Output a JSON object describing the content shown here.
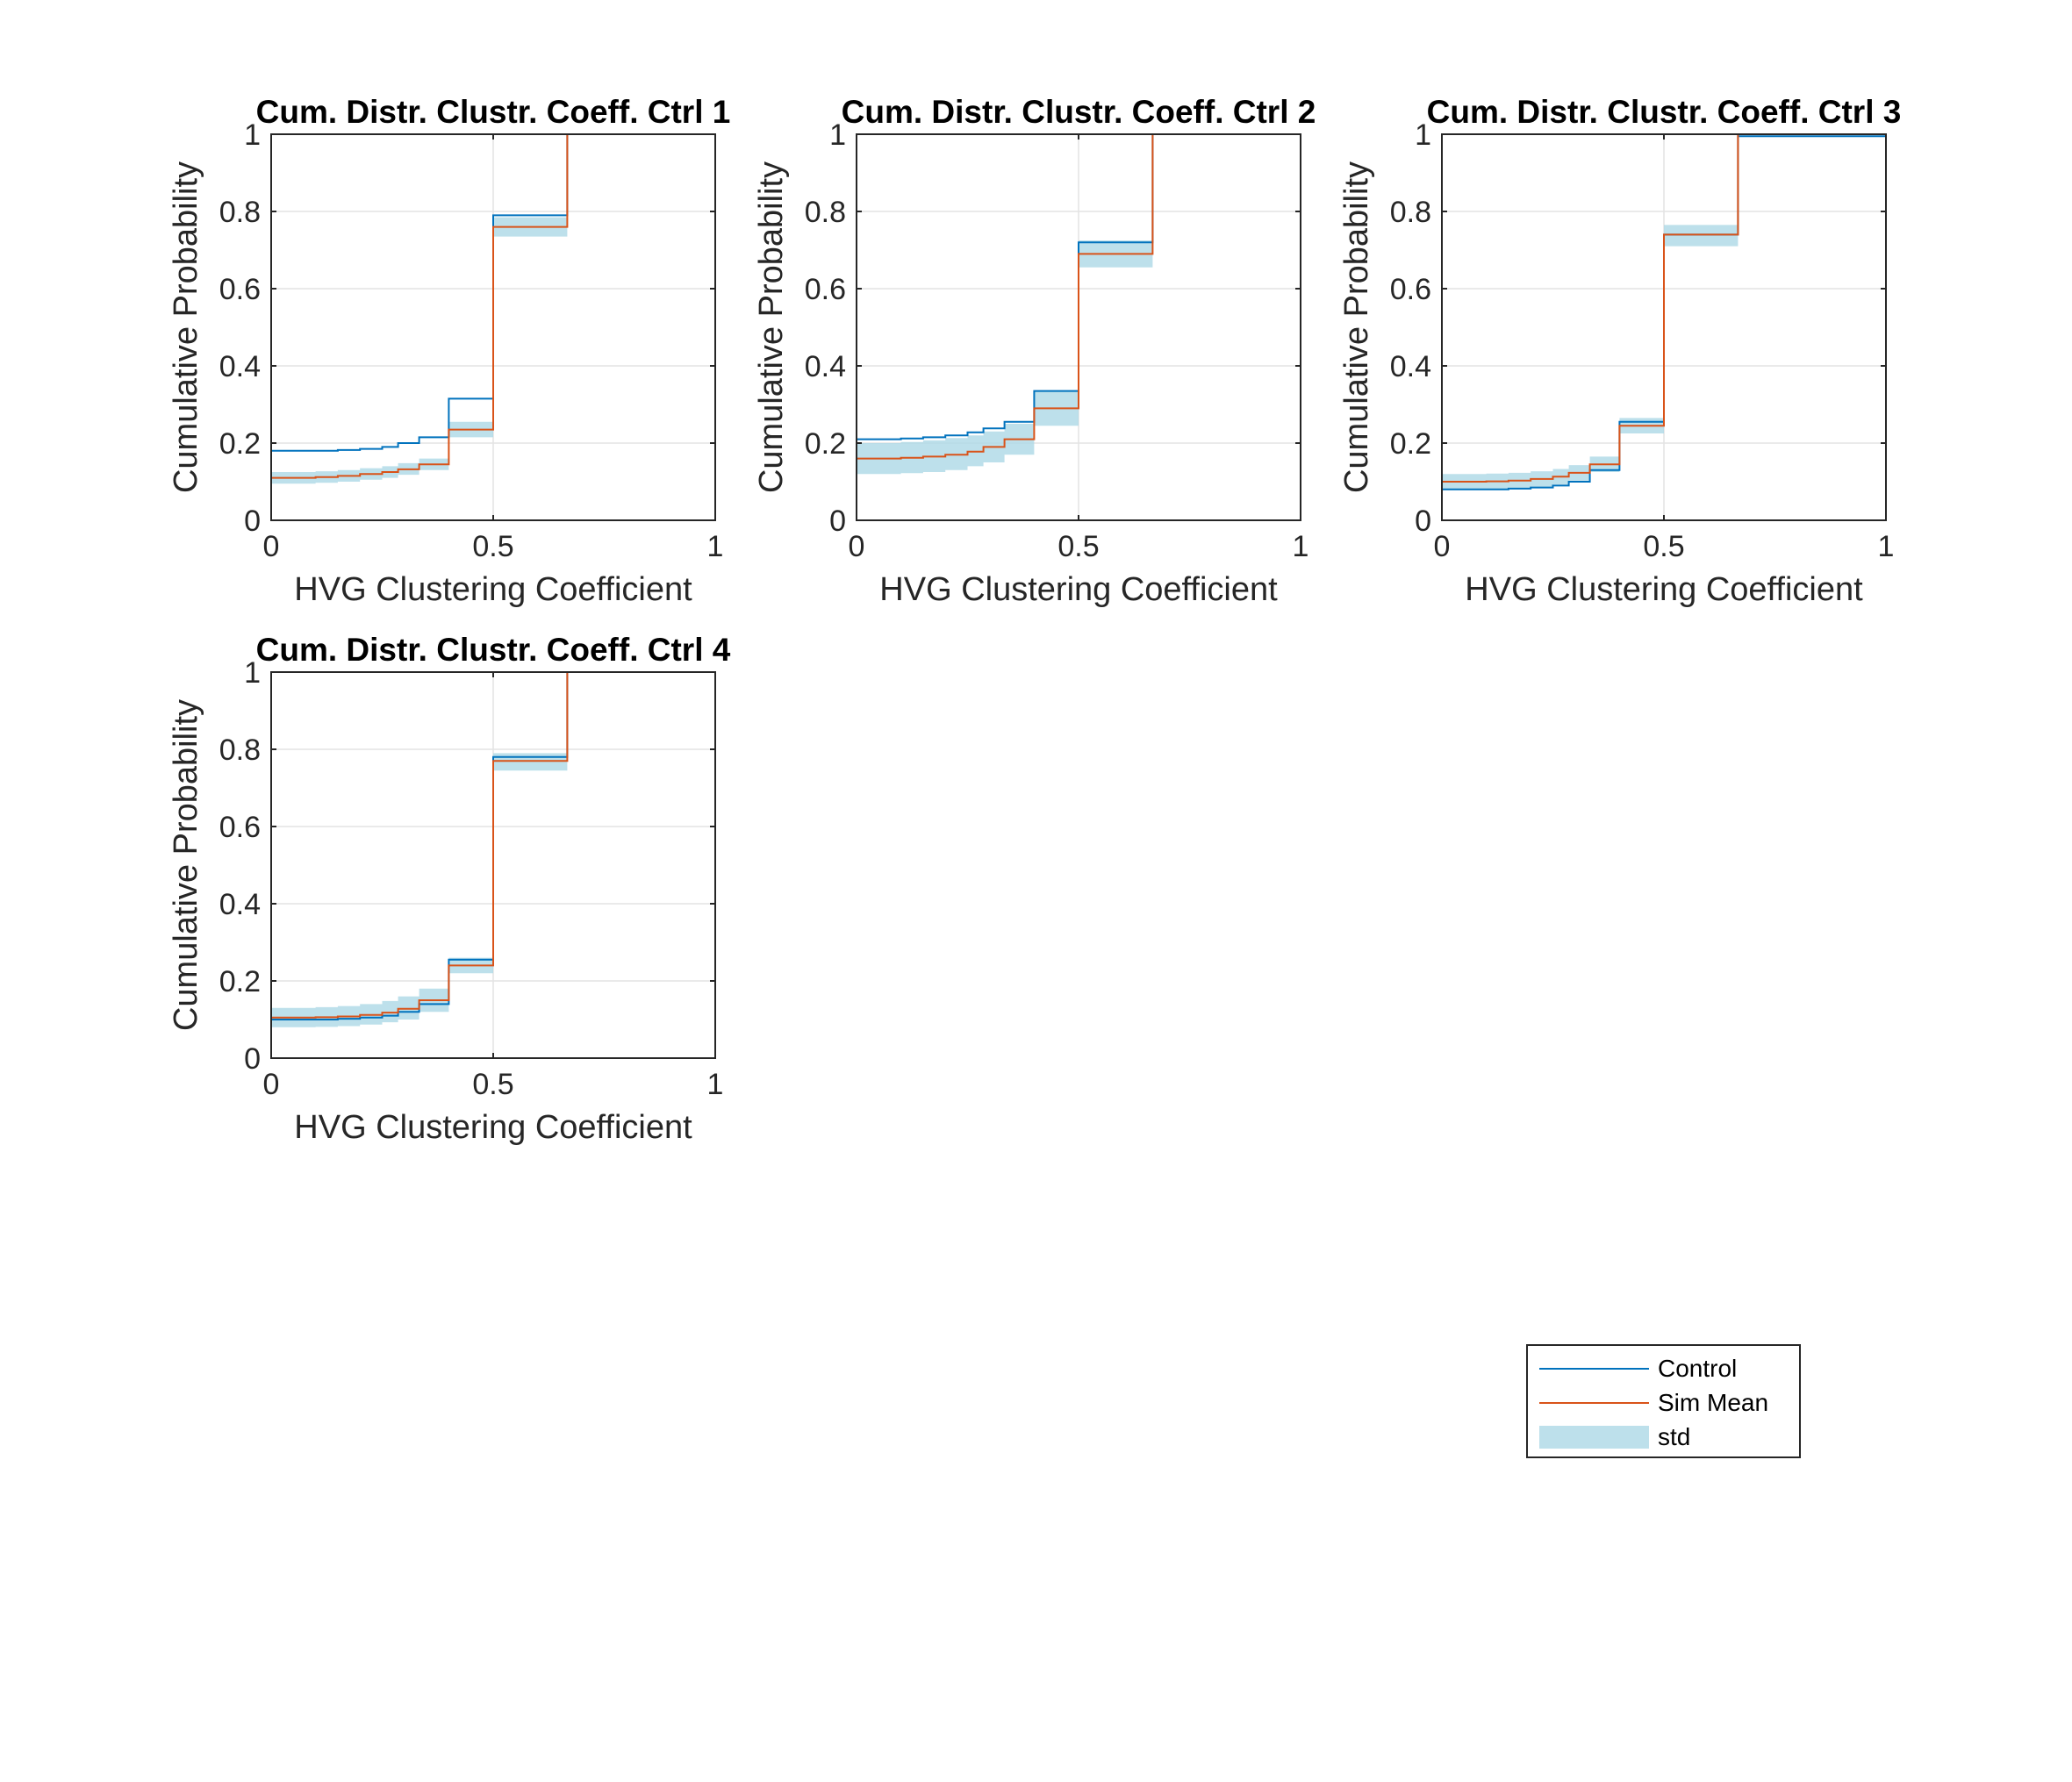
{
  "colors": {
    "control": "#0072BD",
    "sim_mean": "#D95319",
    "std_fill": "#ADD8E6",
    "grid": "#E3E3E3",
    "axis": "#262626"
  },
  "legend": {
    "entries": [
      {
        "label": "Control",
        "kind": "line",
        "color": "#0072BD"
      },
      {
        "label": "Sim Mean",
        "kind": "line",
        "color": "#D95319"
      },
      {
        "label": "std",
        "kind": "patch",
        "color": "#ADD8E6"
      }
    ]
  },
  "chart_data": [
    {
      "type": "line",
      "title": "Cum. Distr. Clustr. Coeff. Ctrl 1",
      "xlabel": "HVG Clustering Coefficient",
      "ylabel": "Cumulative Probability",
      "xlim": [
        0,
        1
      ],
      "ylim": [
        0,
        1
      ],
      "xticks": [
        0,
        0.5,
        1
      ],
      "xtick_labels": [
        "0",
        "0.5",
        "1"
      ],
      "yticks": [
        0,
        0.2,
        0.4,
        0.6,
        0.8,
        1
      ],
      "ytick_labels": [
        "0",
        "0.2",
        "0.4",
        "0.6",
        "0.8",
        "1"
      ],
      "grid": true,
      "series": [
        {
          "name": "Control",
          "step": true,
          "x": [
            0,
            0.1,
            0.15,
            0.2,
            0.25,
            0.2857,
            0.3333,
            0.4,
            0.5,
            0.6667,
            1
          ],
          "y": [
            0.18,
            0.18,
            0.182,
            0.185,
            0.19,
            0.2,
            0.215,
            0.315,
            0.79,
            1,
            1
          ]
        },
        {
          "name": "Sim Mean",
          "step": true,
          "x": [
            0,
            0.1,
            0.15,
            0.2,
            0.25,
            0.2857,
            0.3333,
            0.4,
            0.5,
            0.6667,
            1
          ],
          "y": [
            0.11,
            0.112,
            0.115,
            0.12,
            0.125,
            0.132,
            0.145,
            0.235,
            0.76,
            1,
            1
          ]
        },
        {
          "name": "std",
          "step": true,
          "x": [
            0,
            0.1,
            0.15,
            0.2,
            0.25,
            0.2857,
            0.3333,
            0.4,
            0.5,
            0.6667,
            1
          ],
          "lower": [
            0.095,
            0.097,
            0.1,
            0.105,
            0.11,
            0.118,
            0.13,
            0.215,
            0.735,
            1,
            1
          ],
          "upper": [
            0.125,
            0.127,
            0.13,
            0.135,
            0.14,
            0.148,
            0.16,
            0.255,
            0.785,
            1,
            1
          ]
        }
      ]
    },
    {
      "type": "line",
      "title": "Cum. Distr. Clustr. Coeff. Ctrl 2",
      "xlabel": "HVG Clustering Coefficient",
      "ylabel": "Cumulative Probability",
      "xlim": [
        0,
        1
      ],
      "ylim": [
        0,
        1
      ],
      "xticks": [
        0,
        0.5,
        1
      ],
      "xtick_labels": [
        "0",
        "0.5",
        "1"
      ],
      "yticks": [
        0,
        0.2,
        0.4,
        0.6,
        0.8,
        1
      ],
      "ytick_labels": [
        "0",
        "0.2",
        "0.4",
        "0.6",
        "0.8",
        "1"
      ],
      "grid": true,
      "series": [
        {
          "name": "Control",
          "step": true,
          "x": [
            0,
            0.1,
            0.15,
            0.2,
            0.25,
            0.2857,
            0.3333,
            0.4,
            0.5,
            0.6667,
            1
          ],
          "y": [
            0.21,
            0.212,
            0.215,
            0.22,
            0.228,
            0.238,
            0.255,
            0.335,
            0.72,
            1,
            1
          ]
        },
        {
          "name": "Sim Mean",
          "step": true,
          "x": [
            0,
            0.1,
            0.15,
            0.2,
            0.25,
            0.2857,
            0.3333,
            0.4,
            0.5,
            0.6667,
            1
          ],
          "y": [
            0.16,
            0.162,
            0.165,
            0.17,
            0.178,
            0.19,
            0.21,
            0.29,
            0.69,
            1,
            1
          ]
        },
        {
          "name": "std",
          "step": true,
          "x": [
            0,
            0.1,
            0.15,
            0.2,
            0.25,
            0.2857,
            0.3333,
            0.4,
            0.5,
            0.6667,
            1
          ],
          "lower": [
            0.12,
            0.122,
            0.125,
            0.13,
            0.14,
            0.15,
            0.17,
            0.245,
            0.655,
            1,
            1
          ],
          "upper": [
            0.2,
            0.203,
            0.207,
            0.213,
            0.22,
            0.23,
            0.25,
            0.335,
            0.725,
            1,
            1
          ]
        }
      ]
    },
    {
      "type": "line",
      "title": "Cum. Distr. Clustr. Coeff. Ctrl 3",
      "xlabel": "HVG Clustering Coefficient",
      "ylabel": "Cumulative Probability",
      "xlim": [
        0,
        1
      ],
      "ylim": [
        0,
        1
      ],
      "xticks": [
        0,
        0.5,
        1
      ],
      "xtick_labels": [
        "0",
        "0.5",
        "1"
      ],
      "yticks": [
        0,
        0.2,
        0.4,
        0.6,
        0.8,
        1
      ],
      "ytick_labels": [
        "0",
        "0.2",
        "0.4",
        "0.6",
        "0.8",
        "1"
      ],
      "grid": true,
      "series": [
        {
          "name": "Control",
          "step": true,
          "x": [
            0,
            0.1,
            0.15,
            0.2,
            0.25,
            0.2857,
            0.3333,
            0.4,
            0.5,
            0.6667,
            1
          ],
          "y": [
            0.08,
            0.08,
            0.082,
            0.085,
            0.09,
            0.1,
            0.13,
            0.255,
            0.74,
            0.995,
            0.995
          ]
        },
        {
          "name": "Sim Mean",
          "step": true,
          "x": [
            0,
            0.1,
            0.15,
            0.2,
            0.25,
            0.2857,
            0.3333,
            0.4,
            0.5,
            0.6667,
            1
          ],
          "y": [
            0.1,
            0.101,
            0.103,
            0.107,
            0.113,
            0.123,
            0.145,
            0.245,
            0.74,
            1,
            1
          ]
        },
        {
          "name": "std",
          "step": true,
          "x": [
            0,
            0.1,
            0.15,
            0.2,
            0.25,
            0.2857,
            0.3333,
            0.4,
            0.5,
            0.6667,
            1
          ],
          "lower": [
            0.08,
            0.081,
            0.083,
            0.087,
            0.093,
            0.103,
            0.125,
            0.225,
            0.71,
            1,
            1
          ],
          "upper": [
            0.12,
            0.121,
            0.123,
            0.127,
            0.133,
            0.143,
            0.165,
            0.265,
            0.765,
            1,
            1
          ]
        }
      ]
    },
    {
      "type": "line",
      "title": "Cum. Distr. Clustr. Coeff. Ctrl 4",
      "xlabel": "HVG Clustering Coefficient",
      "ylabel": "Cumulative Probability",
      "xlim": [
        0,
        1
      ],
      "ylim": [
        0,
        1
      ],
      "xticks": [
        0,
        0.5,
        1
      ],
      "xtick_labels": [
        "0",
        "0.5",
        "1"
      ],
      "yticks": [
        0,
        0.2,
        0.4,
        0.6,
        0.8,
        1
      ],
      "ytick_labels": [
        "0",
        "0.2",
        "0.4",
        "0.6",
        "0.8",
        "1"
      ],
      "grid": true,
      "series": [
        {
          "name": "Control",
          "step": true,
          "x": [
            0,
            0.1,
            0.15,
            0.2,
            0.25,
            0.2857,
            0.3333,
            0.4,
            0.5,
            0.6667,
            1
          ],
          "y": [
            0.1,
            0.1,
            0.102,
            0.105,
            0.11,
            0.12,
            0.14,
            0.255,
            0.78,
            1,
            1
          ]
        },
        {
          "name": "Sim Mean",
          "step": true,
          "x": [
            0,
            0.1,
            0.15,
            0.2,
            0.25,
            0.2857,
            0.3333,
            0.4,
            0.5,
            0.6667,
            1
          ],
          "y": [
            0.105,
            0.106,
            0.108,
            0.112,
            0.118,
            0.128,
            0.15,
            0.24,
            0.77,
            1,
            1
          ]
        },
        {
          "name": "std",
          "step": true,
          "x": [
            0,
            0.1,
            0.15,
            0.2,
            0.25,
            0.2857,
            0.3333,
            0.4,
            0.5,
            0.6667,
            1
          ],
          "lower": [
            0.08,
            0.081,
            0.083,
            0.087,
            0.093,
            0.1,
            0.12,
            0.22,
            0.745,
            1,
            1
          ],
          "upper": [
            0.13,
            0.132,
            0.135,
            0.14,
            0.148,
            0.16,
            0.18,
            0.26,
            0.79,
            1,
            1
          ]
        }
      ]
    }
  ]
}
